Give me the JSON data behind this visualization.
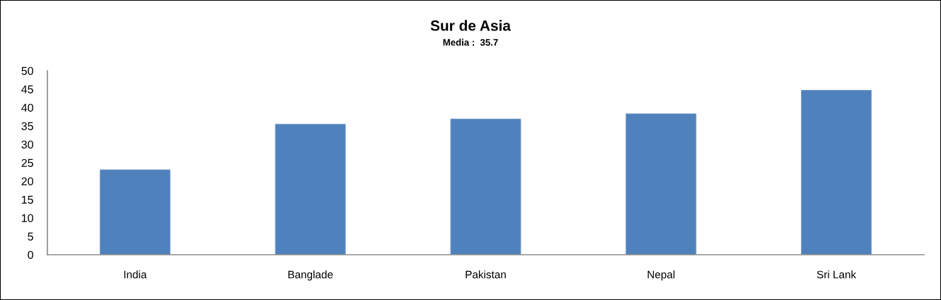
{
  "chart_data": {
    "type": "bar",
    "title": "Sur de Asia",
    "subtitle": "Media :  35.7",
    "categories": [
      "India",
      "Banglade",
      "Pakistan",
      "Nepal",
      "Sri Lank"
    ],
    "values": [
      23.1,
      35.5,
      36.9,
      38.3,
      44.7
    ],
    "color": "#4f81bd",
    "ylim": [
      0,
      50
    ],
    "yticks": [
      0,
      5,
      10,
      15,
      20,
      25,
      30,
      35,
      40,
      45,
      50
    ],
    "grid": false,
    "legend": false
  }
}
